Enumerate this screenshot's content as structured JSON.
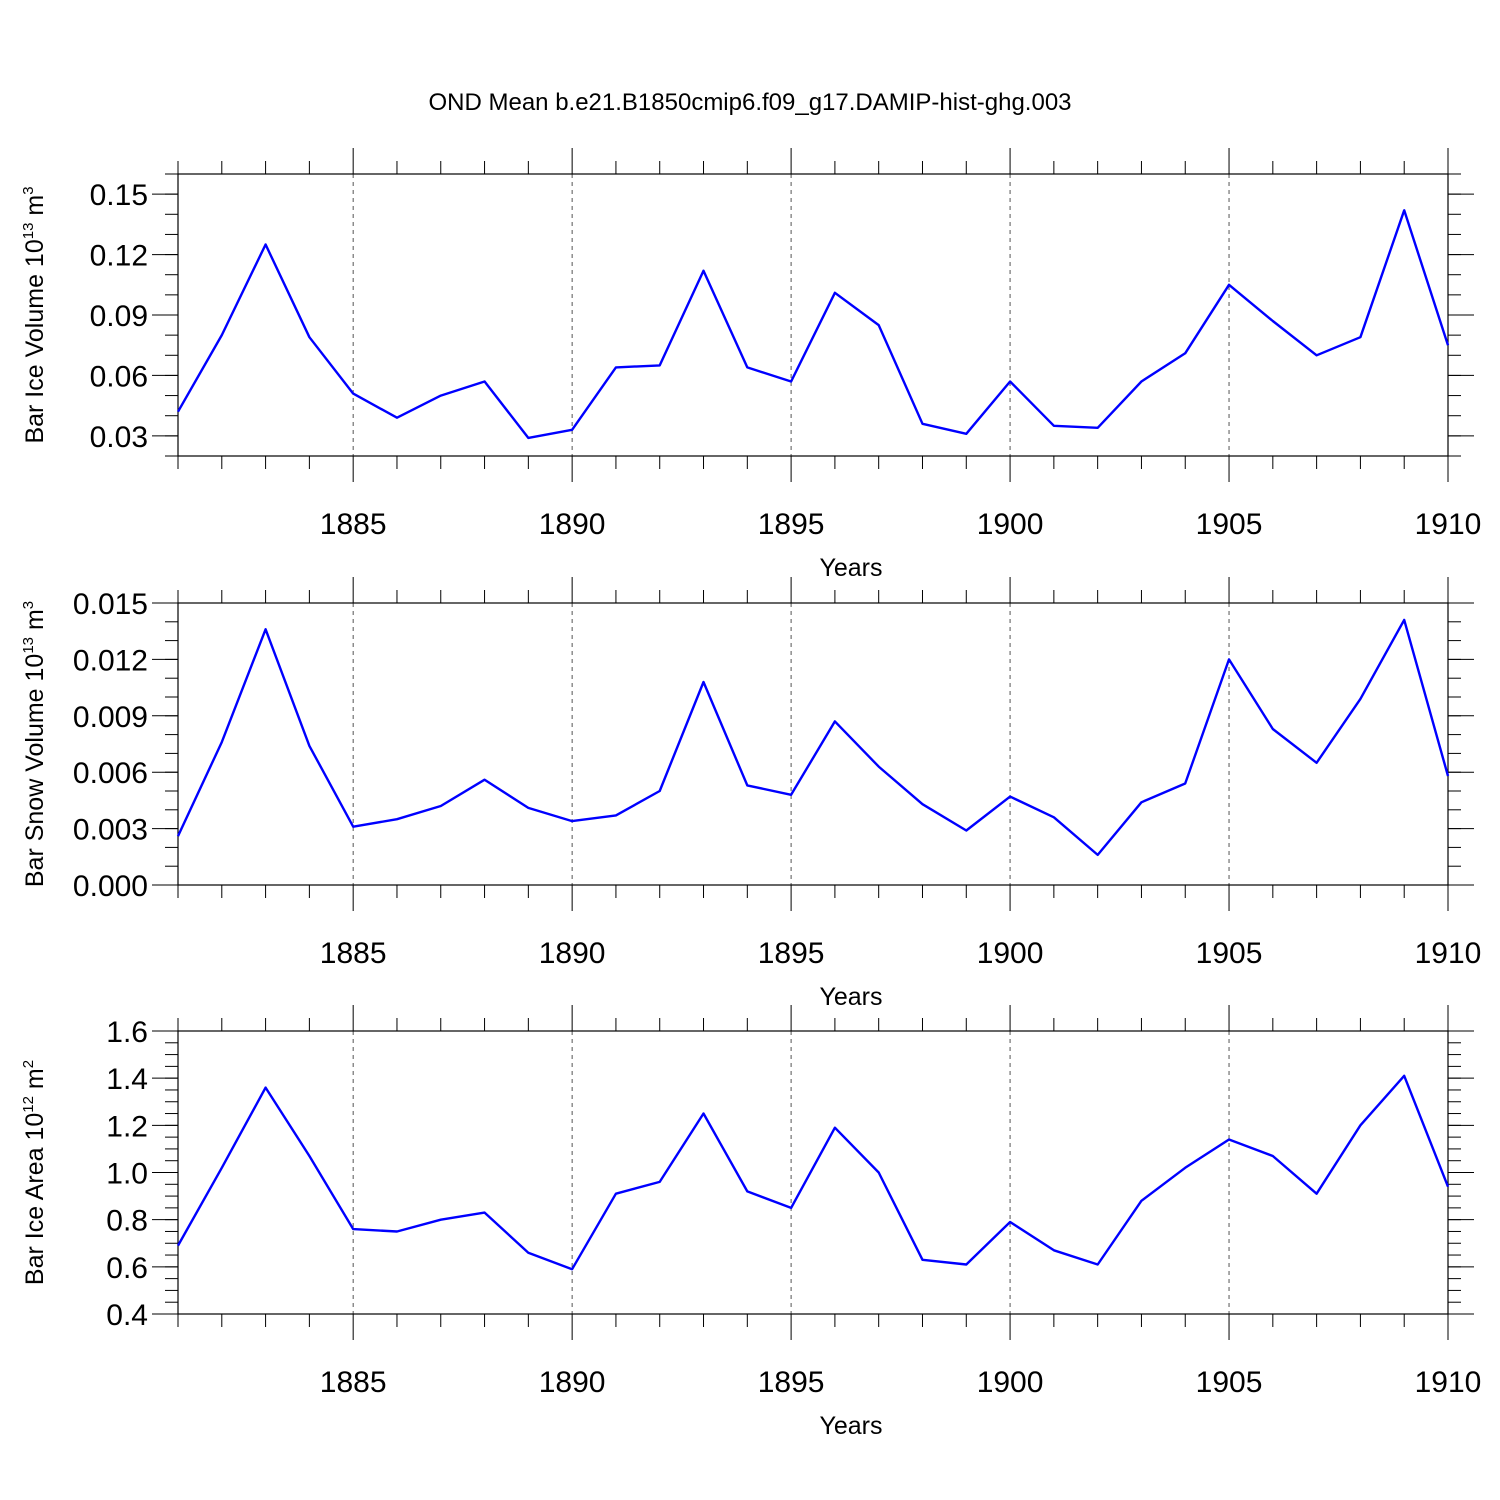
{
  "title": "OND Mean b.e21.B1850cmip6.f09_g17.DAMIP-hist-ghg.003",
  "colors": {
    "line": "#0000ff",
    "axis": "#000000",
    "grid": "#555555"
  },
  "chart_data": [
    {
      "type": "line",
      "xlabel": "Years",
      "ylabel": {
        "text": "Bar Ice Volume 10",
        "sup": "13",
        "unit": " m",
        "unit_sup": "3"
      },
      "xlim": [
        1881,
        1910
      ],
      "ylim": [
        0.02,
        0.16
      ],
      "xticks": [
        1885,
        1890,
        1895,
        1900,
        1905,
        1910
      ],
      "xtick_labels": [
        "1885",
        "1890",
        "1895",
        "1900",
        "1905",
        "1910"
      ],
      "yticks": [
        0.03,
        0.06,
        0.09,
        0.12,
        0.15
      ],
      "ytick_labels": [
        "0.03",
        "0.06",
        "0.09",
        "0.12",
        "0.15"
      ],
      "y_minor_step": 0.01,
      "x": [
        1881,
        1882,
        1883,
        1884,
        1885,
        1886,
        1887,
        1888,
        1889,
        1890,
        1891,
        1892,
        1893,
        1894,
        1895,
        1896,
        1897,
        1898,
        1899,
        1900,
        1901,
        1902,
        1903,
        1904,
        1905,
        1906,
        1907,
        1908,
        1909,
        1910
      ],
      "values": [
        0.042,
        0.08,
        0.125,
        0.079,
        0.051,
        0.039,
        0.05,
        0.057,
        0.029,
        0.033,
        0.064,
        0.065,
        0.112,
        0.064,
        0.057,
        0.101,
        0.085,
        0.036,
        0.031,
        0.057,
        0.035,
        0.034,
        0.057,
        0.071,
        0.105,
        0.087,
        0.07,
        0.079,
        0.142,
        0.075
      ]
    },
    {
      "type": "line",
      "xlabel": "Years",
      "ylabel": {
        "text": "Bar Snow Volume 10",
        "sup": "13",
        "unit": " m",
        "unit_sup": "3"
      },
      "xlim": [
        1881,
        1910
      ],
      "ylim": [
        0.0,
        0.015
      ],
      "xticks": [
        1885,
        1890,
        1895,
        1900,
        1905,
        1910
      ],
      "xtick_labels": [
        "1885",
        "1890",
        "1895",
        "1900",
        "1905",
        "1910"
      ],
      "yticks": [
        0.0,
        0.003,
        0.006,
        0.009,
        0.012,
        0.015
      ],
      "ytick_labels": [
        "0.000",
        "0.003",
        "0.006",
        "0.009",
        "0.012",
        "0.015"
      ],
      "y_minor_step": 0.001,
      "x": [
        1881,
        1882,
        1883,
        1884,
        1885,
        1886,
        1887,
        1888,
        1889,
        1890,
        1891,
        1892,
        1893,
        1894,
        1895,
        1896,
        1897,
        1898,
        1899,
        1900,
        1901,
        1902,
        1903,
        1904,
        1905,
        1906,
        1907,
        1908,
        1909,
        1910
      ],
      "values": [
        0.0026,
        0.0076,
        0.0136,
        0.0074,
        0.0031,
        0.0035,
        0.0042,
        0.0056,
        0.0041,
        0.0034,
        0.0037,
        0.005,
        0.0108,
        0.0053,
        0.0048,
        0.0087,
        0.0063,
        0.0043,
        0.0029,
        0.0047,
        0.0036,
        0.0016,
        0.0044,
        0.0054,
        0.012,
        0.0083,
        0.0065,
        0.0099,
        0.0141,
        0.0058
      ]
    },
    {
      "type": "line",
      "xlabel": "Years",
      "ylabel": {
        "text": "Bar Ice Area 10",
        "sup": "12",
        "unit": " m",
        "unit_sup": "2"
      },
      "xlim": [
        1881,
        1910
      ],
      "ylim": [
        0.4,
        1.6
      ],
      "xticks": [
        1885,
        1890,
        1895,
        1900,
        1905,
        1910
      ],
      "xtick_labels": [
        "1885",
        "1890",
        "1895",
        "1900",
        "1905",
        "1910"
      ],
      "yticks": [
        0.4,
        0.6,
        0.8,
        1.0,
        1.2,
        1.4,
        1.6
      ],
      "ytick_labels": [
        "0.4",
        "0.6",
        "0.8",
        "1.0",
        "1.2",
        "1.4",
        "1.6"
      ],
      "y_minor_step": 0.05,
      "x": [
        1881,
        1882,
        1883,
        1884,
        1885,
        1886,
        1887,
        1888,
        1889,
        1890,
        1891,
        1892,
        1893,
        1894,
        1895,
        1896,
        1897,
        1898,
        1899,
        1900,
        1901,
        1902,
        1903,
        1904,
        1905,
        1906,
        1907,
        1908,
        1909,
        1910
      ],
      "values": [
        0.69,
        1.02,
        1.36,
        1.07,
        0.76,
        0.75,
        0.8,
        0.83,
        0.66,
        0.59,
        0.91,
        0.96,
        1.25,
        0.92,
        0.85,
        1.19,
        1.0,
        0.63,
        0.61,
        0.79,
        0.67,
        0.61,
        0.88,
        1.02,
        1.14,
        1.07,
        0.91,
        1.2,
        1.41,
        0.94
      ]
    }
  ]
}
